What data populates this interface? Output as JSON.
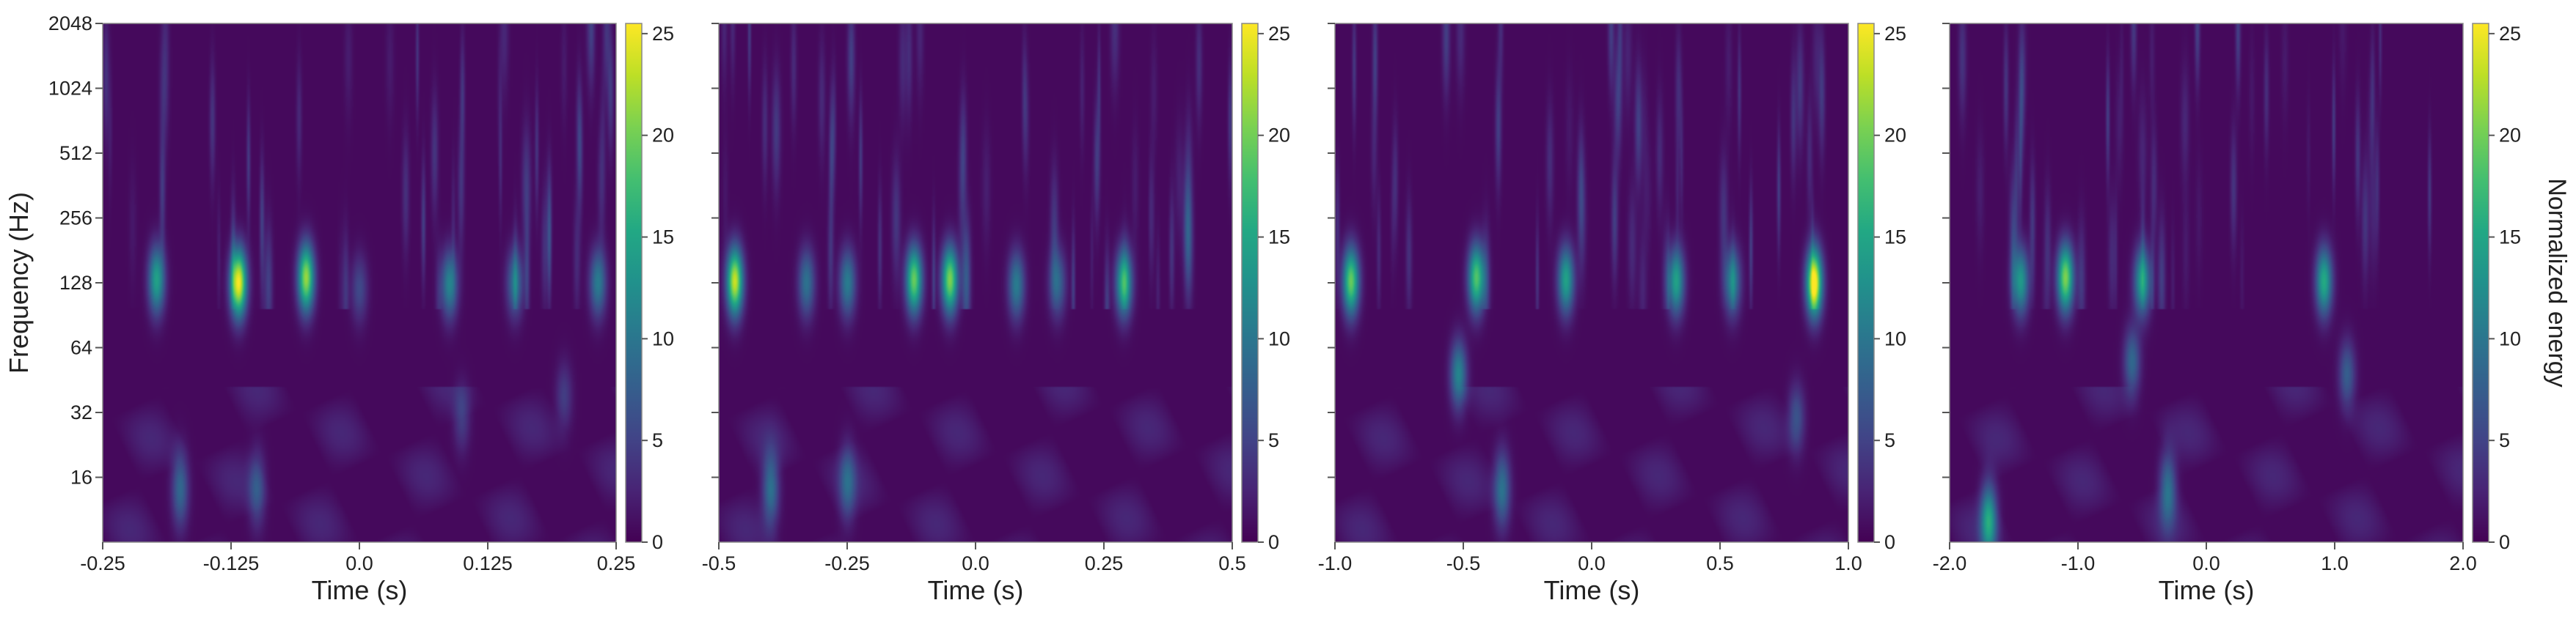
{
  "chart_data": [
    {
      "type": "heatmap",
      "xlabel": "Time (s)",
      "ylabel": "Frequency (Hz)",
      "xlim": [
        -0.25,
        0.25
      ],
      "xticks": [
        "-0.25",
        "-0.125",
        "0.0",
        "0.125",
        "0.25"
      ],
      "ylim": [
        8,
        2048
      ],
      "yscale": "log2",
      "yticks": [
        "16",
        "32",
        "64",
        "128",
        "256",
        "512",
        "1024",
        "2048"
      ],
      "colorbar": {
        "label": "",
        "range": [
          0,
          25.5
        ],
        "ticks": [
          "0",
          "5",
          "10",
          "15",
          "20",
          "25"
        ],
        "colormap": "viridis"
      },
      "features": [
        {
          "kind": "blob",
          "t": -0.198,
          "f": 132,
          "e": 14
        },
        {
          "kind": "blob",
          "t": -0.118,
          "f": 128,
          "e": 25
        },
        {
          "kind": "blob",
          "t": -0.052,
          "f": 135,
          "e": 21
        },
        {
          "kind": "blob",
          "t": 0.0,
          "f": 120,
          "e": 5
        },
        {
          "kind": "blob",
          "t": 0.088,
          "f": 126,
          "e": 11
        },
        {
          "kind": "blob",
          "t": 0.152,
          "f": 128,
          "e": 9
        },
        {
          "kind": "blob",
          "t": 0.233,
          "f": 128,
          "e": 10
        },
        {
          "kind": "blob",
          "t": -0.175,
          "f": 14,
          "e": 8
        },
        {
          "kind": "blob",
          "t": -0.1,
          "f": 14,
          "e": 6
        },
        {
          "kind": "blob",
          "t": 0.1,
          "f": 30,
          "e": 4
        },
        {
          "kind": "blob",
          "t": 0.2,
          "f": 38,
          "e": 4
        }
      ]
    },
    {
      "type": "heatmap",
      "xlabel": "Time (s)",
      "xlim": [
        -0.5,
        0.5
      ],
      "xticks": [
        "-0.5",
        "-0.25",
        "0.0",
        "0.25",
        "0.5"
      ],
      "ylim": [
        8,
        2048
      ],
      "yscale": "log2",
      "colorbar": {
        "label": "",
        "range": [
          0,
          25.5
        ],
        "ticks": [
          "0",
          "5",
          "10",
          "15",
          "20",
          "25"
        ],
        "colormap": "viridis"
      },
      "features": [
        {
          "kind": "blob",
          "t": -0.47,
          "f": 130,
          "e": 23
        },
        {
          "kind": "blob",
          "t": -0.33,
          "f": 128,
          "e": 9
        },
        {
          "kind": "blob",
          "t": -0.25,
          "f": 128,
          "e": 10
        },
        {
          "kind": "blob",
          "t": -0.12,
          "f": 132,
          "e": 19
        },
        {
          "kind": "blob",
          "t": -0.05,
          "f": 132,
          "e": 20
        },
        {
          "kind": "blob",
          "t": 0.08,
          "f": 125,
          "e": 10
        },
        {
          "kind": "blob",
          "t": 0.16,
          "f": 128,
          "e": 8
        },
        {
          "kind": "blob",
          "t": 0.29,
          "f": 128,
          "e": 16
        },
        {
          "kind": "blob",
          "t": -0.4,
          "f": 14,
          "e": 9
        },
        {
          "kind": "blob",
          "t": -0.25,
          "f": 15,
          "e": 7
        }
      ]
    },
    {
      "type": "heatmap",
      "xlabel": "Time (s)",
      "xlim": [
        -1.0,
        1.0
      ],
      "xticks": [
        "-1.0",
        "-0.5",
        "0.0",
        "0.5",
        "1.0"
      ],
      "ylim": [
        8,
        2048
      ],
      "yscale": "log2",
      "colorbar": {
        "label": "",
        "range": [
          0,
          25.5
        ],
        "ticks": [
          "0",
          "5",
          "10",
          "15",
          "20",
          "25"
        ],
        "colormap": "viridis"
      },
      "features": [
        {
          "kind": "blob",
          "t": -0.94,
          "f": 130,
          "e": 19
        },
        {
          "kind": "blob",
          "t": -0.45,
          "f": 135,
          "e": 18
        },
        {
          "kind": "blob",
          "t": -0.1,
          "f": 132,
          "e": 14
        },
        {
          "kind": "blob",
          "t": 0.33,
          "f": 130,
          "e": 14
        },
        {
          "kind": "blob",
          "t": 0.55,
          "f": 130,
          "e": 11
        },
        {
          "kind": "blob",
          "t": 0.87,
          "f": 128,
          "e": 24
        },
        {
          "kind": "blob",
          "t": -0.52,
          "f": 48,
          "e": 11
        },
        {
          "kind": "blob",
          "t": -0.35,
          "f": 14,
          "e": 9
        },
        {
          "kind": "blob",
          "t": 0.8,
          "f": 30,
          "e": 6
        }
      ]
    },
    {
      "type": "heatmap",
      "xlabel": "Time (s)",
      "xlim": [
        -2.0,
        2.0
      ],
      "xticks": [
        "-2.0",
        "-1.0",
        "0.0",
        "1.0",
        "2.0"
      ],
      "ylim": [
        8,
        2048
      ],
      "yscale": "log2",
      "colorbar": {
        "label": "Normalized energy",
        "range": [
          0,
          25.5
        ],
        "ticks": [
          "0",
          "5",
          "10",
          "15",
          "20",
          "25"
        ],
        "colormap": "viridis"
      },
      "features": [
        {
          "kind": "blob",
          "t": -1.45,
          "f": 130,
          "e": 13
        },
        {
          "kind": "blob",
          "t": -1.1,
          "f": 135,
          "e": 20
        },
        {
          "kind": "blob",
          "t": -0.5,
          "f": 130,
          "e": 14
        },
        {
          "kind": "blob",
          "t": 0.92,
          "f": 130,
          "e": 15
        },
        {
          "kind": "blob",
          "t": -0.58,
          "f": 55,
          "e": 8
        },
        {
          "kind": "blob",
          "t": 1.1,
          "f": 48,
          "e": 7
        },
        {
          "kind": "blob",
          "t": -1.7,
          "f": 10,
          "e": 14
        },
        {
          "kind": "blob",
          "t": -0.3,
          "f": 14,
          "e": 9
        }
      ]
    }
  ]
}
